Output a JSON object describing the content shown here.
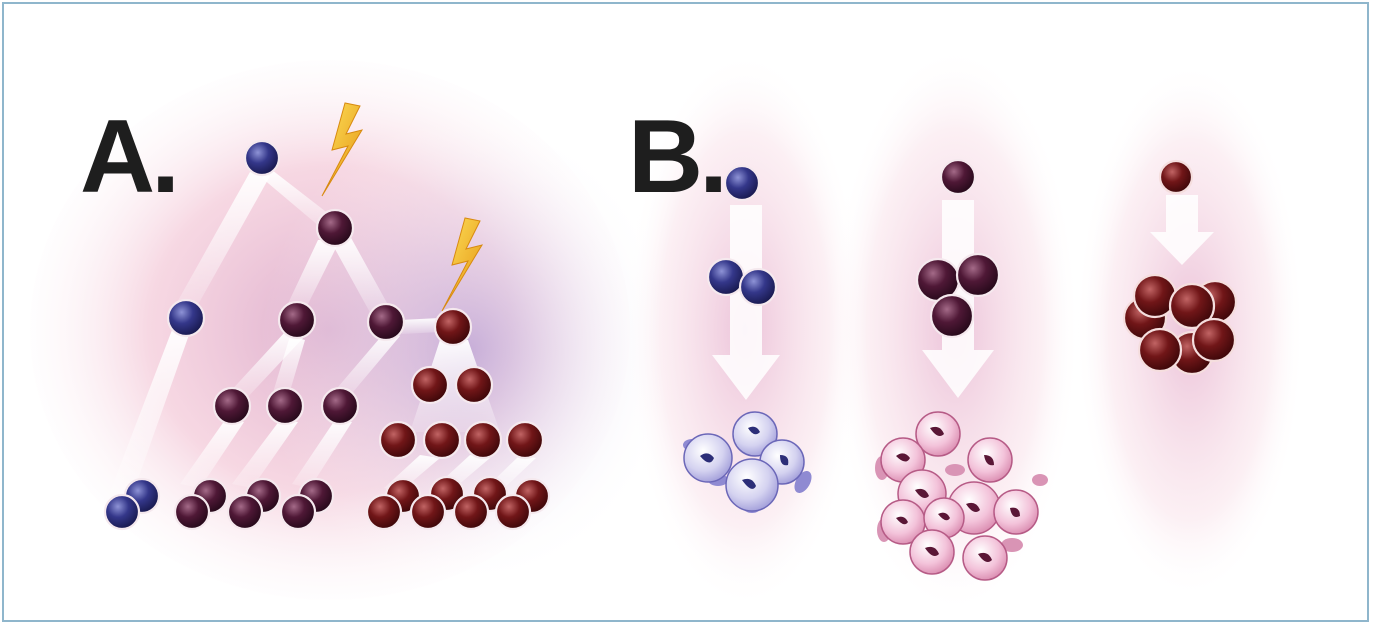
{
  "panels": [
    {
      "label": "A."
    },
    {
      "label": "B."
    }
  ],
  "colors": {
    "stem_cell": "#2c2e78",
    "intermediate_cell": "#4a1430",
    "malignant_cell": "#6e1418",
    "pale_blue_cell": "#d8d6f2",
    "pale_pink_cell": "#f3c6dc",
    "lightning": "#f2b21c",
    "background_pink": "#f4b4c8",
    "background_purple": "#c7a4d4",
    "border": "#8fb6cc"
  },
  "icons": [
    "lightning-bolt-icon",
    "lightning-bolt-icon",
    "arrow-down-icon"
  ]
}
